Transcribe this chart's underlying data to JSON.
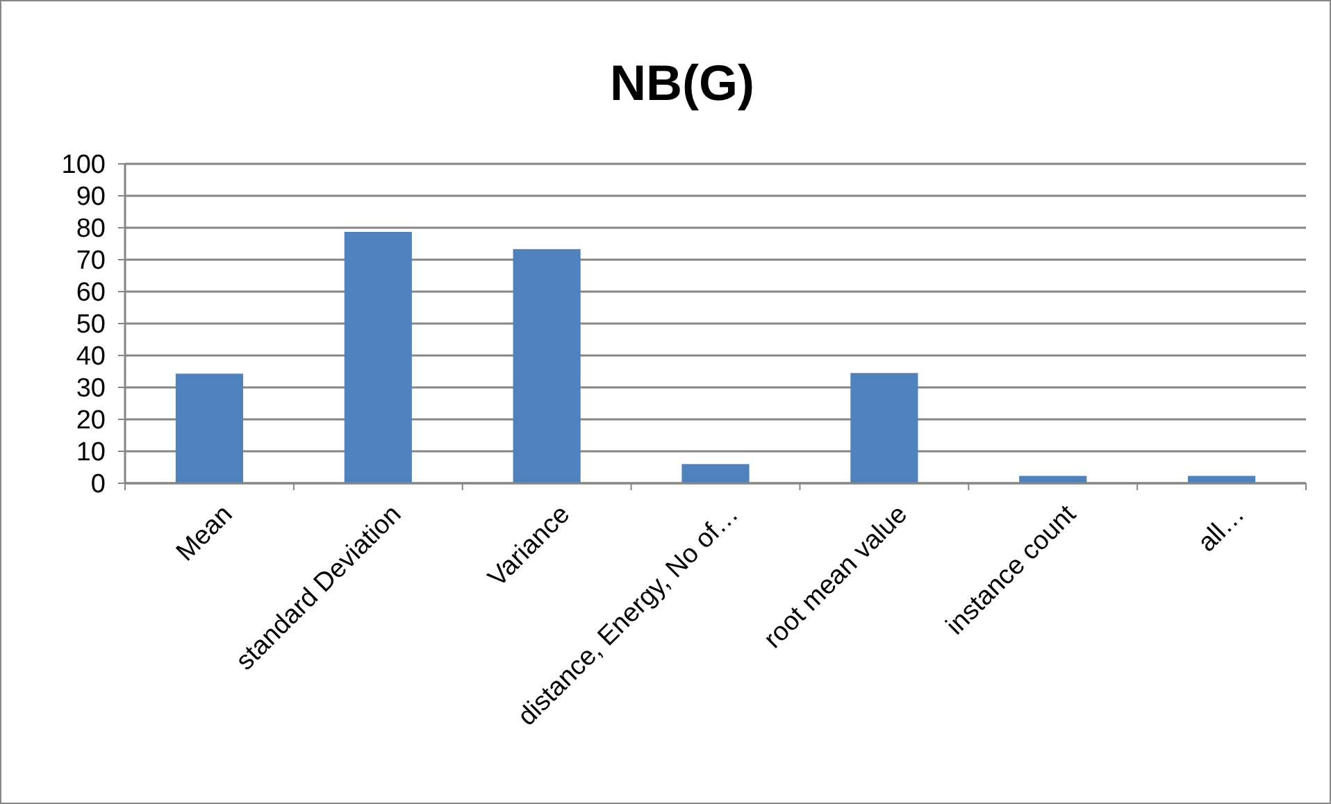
{
  "chart_data": {
    "type": "bar",
    "title": "NB(G)",
    "categories": [
      "Mean",
      "standard Deviation",
      "Variance",
      "distance, Energy, No of…",
      "root mean value",
      "instance count",
      "all…"
    ],
    "values": [
      34.3,
      78.7,
      73.3,
      6,
      34.5,
      2.3,
      2.3
    ],
    "color": "#4f81bd",
    "ylim": [
      0,
      100
    ],
    "yticks": [
      0,
      10,
      20,
      30,
      40,
      50,
      60,
      70,
      80,
      90,
      100
    ],
    "grid": "y"
  }
}
